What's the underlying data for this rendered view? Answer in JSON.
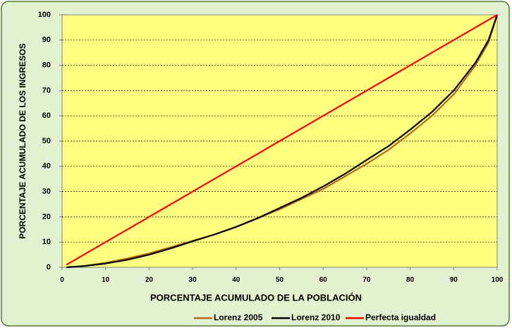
{
  "chart_data": {
    "type": "line",
    "x_label": "PORCENTAJE ACUMULADO DE LA POBLACIÓN",
    "y_label": "PORCENTAJE ACUMULADO DE LOS INGRESOS",
    "x": [
      1,
      5,
      10,
      15,
      20,
      25,
      30,
      35,
      40,
      45,
      50,
      55,
      60,
      65,
      70,
      75,
      80,
      85,
      90,
      95,
      98,
      100
    ],
    "series": [
      {
        "name": "Lorenz 2005",
        "color": "#b8651e",
        "values": [
          0,
          0.5,
          1.8,
          3.5,
          5.5,
          8,
          10.5,
          13,
          16,
          19.5,
          23,
          27,
          31,
          36,
          41,
          46.5,
          53,
          60,
          68.5,
          80,
          89,
          100
        ]
      },
      {
        "name": "Lorenz 2010",
        "color": "#000000",
        "values": [
          0,
          0.5,
          1.5,
          3,
          5,
          7.5,
          10.3,
          13,
          16,
          19.5,
          23.5,
          27.5,
          32,
          37,
          42.5,
          48,
          54.5,
          61.5,
          70,
          81,
          90,
          100
        ]
      },
      {
        "name": "Perfecta igualdad",
        "color": "#ff0000",
        "values": [
          1,
          5,
          10,
          15,
          20,
          25,
          30,
          35,
          40,
          45,
          50,
          55,
          60,
          65,
          70,
          75,
          80,
          85,
          90,
          95,
          98,
          100
        ]
      }
    ],
    "xlim": [
      0,
      100
    ],
    "xticks": [
      0,
      10,
      20,
      30,
      40,
      50,
      60,
      70,
      80,
      90,
      100
    ],
    "ylim": [
      0,
      100
    ],
    "yticks": [
      0,
      10,
      20,
      30,
      40,
      50,
      60,
      70,
      80,
      90,
      100
    ],
    "grid": true,
    "legend": "bottom"
  }
}
